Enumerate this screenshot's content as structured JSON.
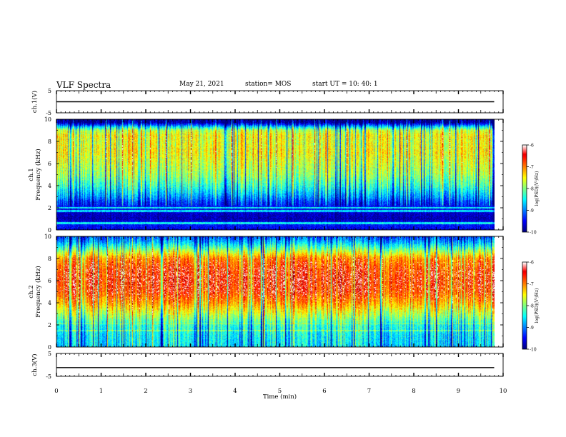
{
  "header": {
    "title": "VLF Spectra",
    "date": "May 21, 2021",
    "station": "station= MOS",
    "start": "start  UT  =   10: 40: 1"
  },
  "chart_data": [
    {
      "type": "line",
      "panel": "ch1-voltage",
      "ylabel": "ch.1(V)",
      "ylim": [
        -5,
        5
      ],
      "yticks": [
        "5",
        "-5"
      ],
      "xlim": [
        0,
        10
      ],
      "series": [
        {
          "x": [
            0,
            9.8
          ],
          "y": [
            0,
            0
          ]
        }
      ]
    },
    {
      "type": "heatmap",
      "panel": "ch1-spectrogram",
      "ylabel": "ch.1\nFrequency (kHz)",
      "ylim": [
        0,
        10
      ],
      "yticks": [
        "0",
        "2",
        "4",
        "6",
        "8",
        "10"
      ],
      "xlim": [
        0,
        9.8
      ],
      "colorbar": {
        "label": "log(PSD)(V²/Hz)",
        "range": [
          -10,
          -6
        ],
        "ticks": [
          "-6",
          "-7",
          "-8",
          "-9",
          "-10"
        ]
      },
      "profile": {
        "freq_khz": [
          0,
          0.5,
          1,
          1.5,
          2,
          2.5,
          3,
          4,
          5,
          6,
          7,
          8,
          8.5,
          9,
          9.3,
          9.7,
          10
        ],
        "log_psd": [
          -9.6,
          -9.4,
          -9.8,
          -9.7,
          -9.5,
          -9.3,
          -8.9,
          -8.3,
          -7.9,
          -7.7,
          -7.5,
          -7.6,
          -7.5,
          -7.8,
          -8.6,
          -9.9,
          -10
        ]
      }
    },
    {
      "type": "heatmap",
      "panel": "ch2-spectrogram",
      "ylabel": "ch.2\nFrequency (kHz)",
      "ylim": [
        0,
        10
      ],
      "yticks": [
        "0",
        "2",
        "4",
        "6",
        "8",
        "10"
      ],
      "xlim": [
        0,
        9.8
      ],
      "colorbar": {
        "label": "log(PSD)(V²/Hz)",
        "range": [
          -10,
          -6
        ],
        "ticks": [
          "-6",
          "-7",
          "-8",
          "-9",
          "-10"
        ]
      },
      "profile": {
        "freq_khz": [
          0,
          1,
          2,
          3,
          4,
          5,
          6,
          7,
          8,
          8.5,
          9,
          9.5,
          10
        ],
        "log_psd": [
          -8.6,
          -8.5,
          -8.3,
          -7.7,
          -7.1,
          -6.7,
          -6.6,
          -6.7,
          -7.0,
          -7.6,
          -8.2,
          -8.8,
          -9.2
        ]
      }
    },
    {
      "type": "line",
      "panel": "ch3-voltage",
      "ylabel": "ch.3(V)",
      "ylim": [
        -5,
        5
      ],
      "yticks": [
        "5",
        "-5"
      ],
      "xlim": [
        0,
        10
      ],
      "xlabel": "Time (min)",
      "xticks": [
        "0",
        "1",
        "2",
        "3",
        "4",
        "5",
        "6",
        "7",
        "8",
        "9",
        "10"
      ],
      "series": [
        {
          "x": [
            0,
            9.8
          ],
          "y": [
            -1.2,
            -1.2
          ]
        }
      ]
    }
  ]
}
